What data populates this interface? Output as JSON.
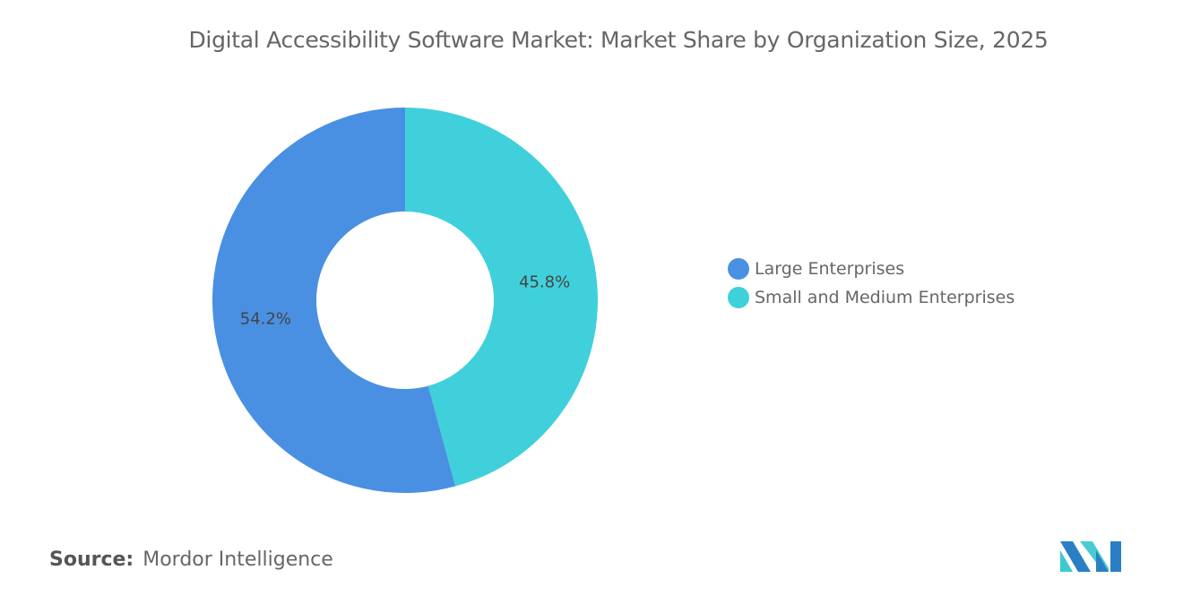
{
  "title": "Digital Accessibility Software Market: Market Share by Organization Size, 2025",
  "source": {
    "label": "Source:",
    "value": "Mordor Intelligence"
  },
  "logo": {
    "text": "Mordor Intelligence",
    "colors": [
      "#2a7fc4",
      "#3fc8d0"
    ]
  },
  "chart_data": {
    "type": "pie",
    "variant": "donut",
    "title": "Digital Accessibility Software Market: Market Share by Organization Size, 2025",
    "legend_position": "right",
    "slices": [
      {
        "name": "Small and Medium Enterprises",
        "value": 45.8,
        "label": "45.8%",
        "color": "#40d0db"
      },
      {
        "name": "Large Enterprises",
        "value": 54.2,
        "label": "54.2%",
        "color": "#4a90e2"
      }
    ],
    "legend": [
      {
        "name": "Large Enterprises",
        "color": "#4a90e2"
      },
      {
        "name": "Small and Medium Enterprises",
        "color": "#40d0db"
      }
    ]
  }
}
